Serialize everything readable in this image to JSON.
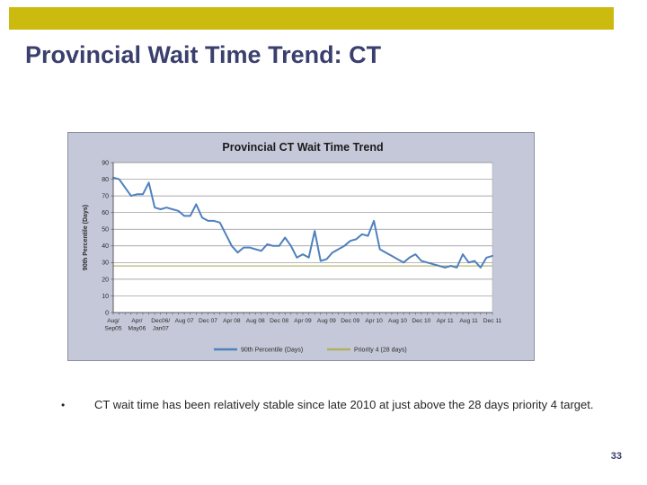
{
  "slide": {
    "title": "Provincial Wait Time Trend: CT",
    "bullet_marker": "•",
    "bullet": "CT wait time has been relatively stable since late 2010 at just above the 28 days priority 4 target.",
    "page_number": "33",
    "accent_color": "#CCBA0F",
    "title_color": "#3A3F6E"
  },
  "chart_data": {
    "type": "line",
    "title": "Provincial CT Wait Time Trend",
    "ylabel": "90th Percentile (Days)",
    "xlabel": "",
    "ylim": [
      0,
      90
    ],
    "ytick_step": 10,
    "grid": true,
    "legend_position": "bottom",
    "target_value": 28,
    "series": [
      {
        "name": "90th Percentile (Days)",
        "color": "#4F81BD",
        "values": [
          81,
          80,
          75,
          70,
          71,
          71,
          78,
          63,
          62,
          63,
          62,
          61,
          58,
          58,
          65,
          57,
          55,
          55,
          54,
          47,
          40,
          36,
          39,
          39,
          38,
          37,
          41,
          40,
          40,
          45,
          40,
          33,
          35,
          33,
          49,
          31,
          32,
          36,
          38,
          40,
          43,
          44,
          47,
          46,
          55,
          38,
          36,
          34,
          32,
          30,
          33,
          35,
          31,
          30,
          29,
          28,
          27,
          28,
          27,
          35,
          30,
          31,
          27,
          33,
          34
        ]
      },
      {
        "name": "Priority 4 (28 days)",
        "color": "#B0AF63",
        "constant": 28
      }
    ],
    "x_tick_labels": [
      {
        "index": 0,
        "label": "Aug/\nSep05"
      },
      {
        "index": 4,
        "label": "Apr/\nMay06"
      },
      {
        "index": 8,
        "label": "Dec06/\nJan07"
      },
      {
        "index": 12,
        "label": "Aug 07"
      },
      {
        "index": 16,
        "label": "Dec 07"
      },
      {
        "index": 20,
        "label": "Apr 08"
      },
      {
        "index": 24,
        "label": "Aug 08"
      },
      {
        "index": 28,
        "label": "Dec 08"
      },
      {
        "index": 32,
        "label": "Apr 09"
      },
      {
        "index": 36,
        "label": "Aug 09"
      },
      {
        "index": 40,
        "label": "Dec 09"
      },
      {
        "index": 44,
        "label": "Apr 10"
      },
      {
        "index": 48,
        "label": "Aug 10"
      },
      {
        "index": 52,
        "label": "Dec 10"
      },
      {
        "index": 56,
        "label": "Apr 11"
      },
      {
        "index": 60,
        "label": "Aug 11"
      },
      {
        "index": 64,
        "label": "Dec 11"
      }
    ],
    "colors": {
      "chart_bg": "#C5C8D9",
      "plot_bg": "#FFFFFF",
      "gridline": "#8E8E96",
      "axis": "#5A5A60",
      "title_text": "#1A1A1A",
      "label_text": "#2B2B2B"
    }
  }
}
